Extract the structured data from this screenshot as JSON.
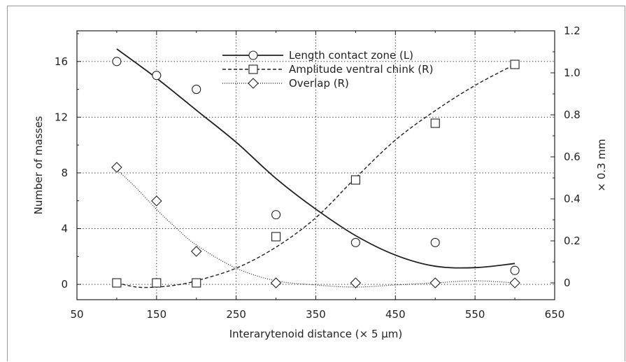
{
  "chart_data": {
    "type": "scatter",
    "xlabel": "Interarytenoid distance (× 5 µm)",
    "ylabel_left": "Number of masses",
    "ylabel_right": "× 0.3 mm",
    "xlim": [
      50,
      650
    ],
    "ylim_left": [
      -1.1,
      18.2
    ],
    "ylim_right": [
      -0.08,
      1.2
    ],
    "x_ticks": [
      50,
      150,
      250,
      350,
      450,
      550,
      650
    ],
    "y_left_ticks": [
      0,
      4,
      8,
      12,
      16
    ],
    "y_right_ticks": [
      0,
      0.2,
      0.4,
      0.6,
      0.8,
      1.0,
      1.2
    ],
    "y_right_tick_labels": [
      "0",
      "0.2",
      "0.4",
      "0.6",
      "0.8",
      "1.0",
      "1.2"
    ],
    "grid": true,
    "legend_position": "top-center",
    "series": [
      {
        "name": "Length contact zone (L)",
        "axis": "left",
        "marker": "circle",
        "line": "solid",
        "x": [
          100,
          150,
          200,
          300,
          400,
          500,
          600
        ],
        "y": [
          16,
          15,
          14,
          5,
          3,
          3,
          1
        ],
        "fit": [
          [
            100,
            16.9
          ],
          [
            150,
            14.8
          ],
          [
            200,
            12.5
          ],
          [
            250,
            10.2
          ],
          [
            300,
            7.6
          ],
          [
            350,
            5.4
          ],
          [
            400,
            3.5
          ],
          [
            450,
            2.1
          ],
          [
            500,
            1.3
          ],
          [
            550,
            1.2
          ],
          [
            600,
            1.5
          ]
        ]
      },
      {
        "name": "Amplitude ventral chink (R)",
        "axis": "right",
        "marker": "square",
        "line": "dashed",
        "x": [
          100,
          150,
          200,
          300,
          400,
          500,
          600
        ],
        "y": [
          0.0,
          0.0,
          0.0,
          0.22,
          0.49,
          0.76,
          1.04
        ],
        "fit": [
          [
            100,
            0.0
          ],
          [
            125,
            -0.02
          ],
          [
            150,
            -0.02
          ],
          [
            175,
            -0.01
          ],
          [
            200,
            0.01
          ],
          [
            250,
            0.07
          ],
          [
            300,
            0.17
          ],
          [
            350,
            0.31
          ],
          [
            400,
            0.5
          ],
          [
            450,
            0.68
          ],
          [
            500,
            0.82
          ],
          [
            550,
            0.94
          ],
          [
            600,
            1.04
          ]
        ]
      },
      {
        "name": "Overlap (R)",
        "axis": "right",
        "marker": "diamond",
        "line": "dotted",
        "x": [
          100,
          150,
          200,
          300,
          400,
          500,
          600
        ],
        "y": [
          0.55,
          0.39,
          0.15,
          0.0,
          0.0,
          0.0,
          0.0
        ],
        "fit": [
          [
            100,
            0.54
          ],
          [
            125,
            0.45
          ],
          [
            150,
            0.35
          ],
          [
            175,
            0.26
          ],
          [
            200,
            0.18
          ],
          [
            250,
            0.07
          ],
          [
            300,
            0.01
          ],
          [
            350,
            -0.01
          ],
          [
            400,
            -0.02
          ],
          [
            450,
            -0.01
          ],
          [
            500,
            0.0
          ],
          [
            550,
            0.01
          ],
          [
            600,
            0.0
          ]
        ]
      }
    ]
  }
}
